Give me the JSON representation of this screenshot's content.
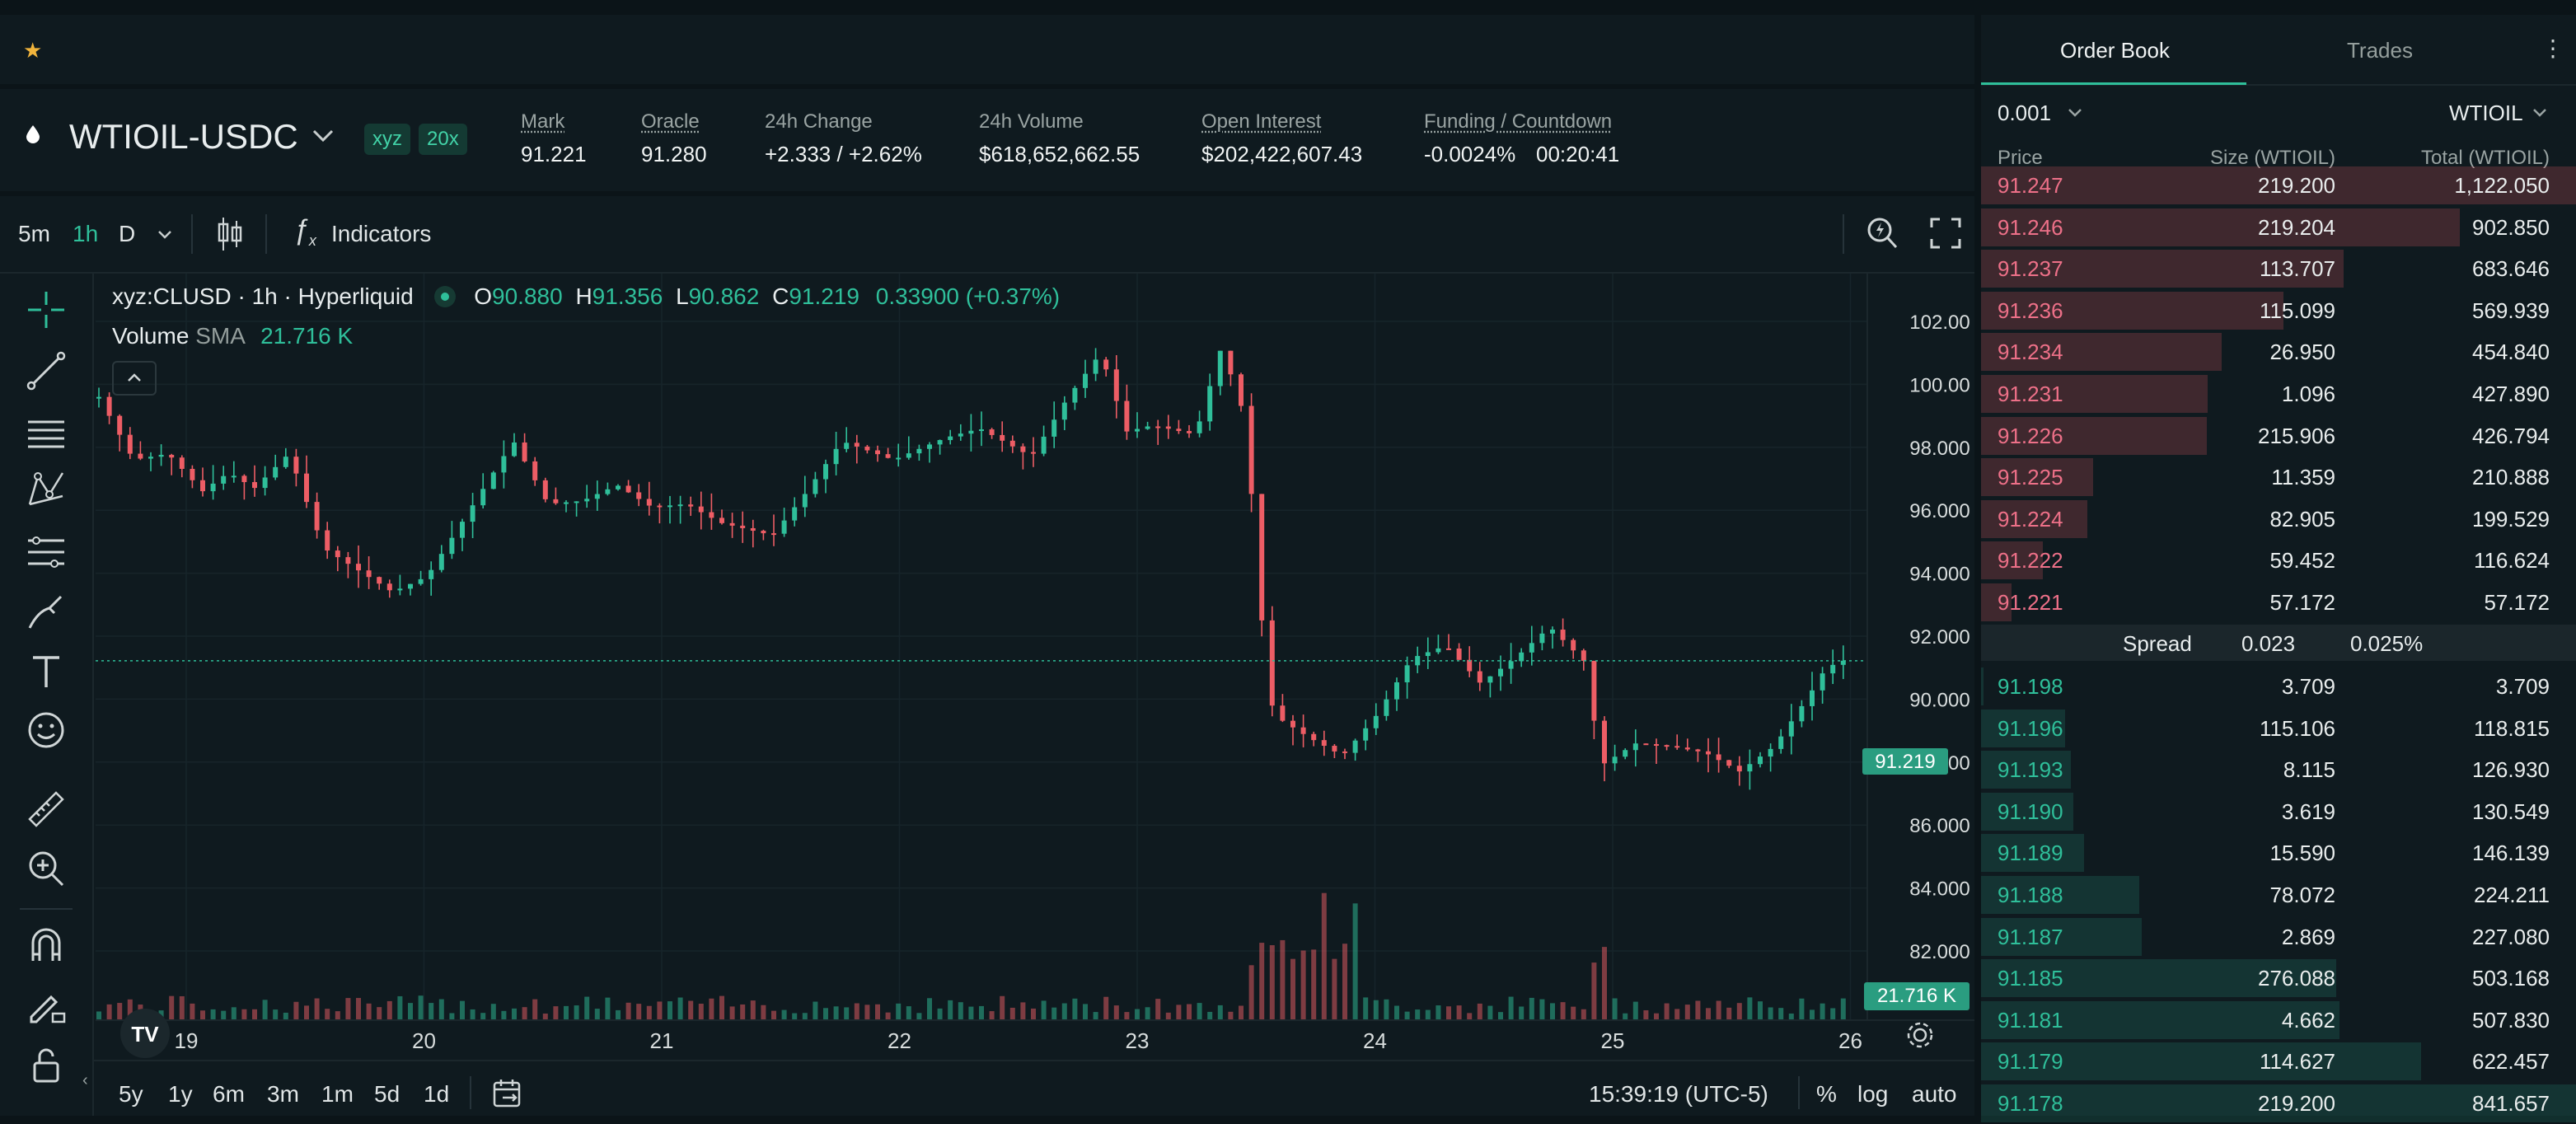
{
  "topbar": {
    "favorite_icon": "star-icon"
  },
  "market": {
    "symbol": "WTIOIL-USDC",
    "tags": [
      "xyz",
      "20x"
    ],
    "stats": [
      {
        "label": "Mark",
        "value": "91.221",
        "underline": true
      },
      {
        "label": "Oracle",
        "value": "91.280",
        "underline": true
      },
      {
        "label": "24h Change",
        "value": "+2.333 / +2.62%",
        "color": "#2fbf9a"
      },
      {
        "label": "24h Volume",
        "value": "$618,652,662.55"
      },
      {
        "label": "Open Interest",
        "value": "$202,422,607.43",
        "underline": true
      },
      {
        "label": "Funding / Countdown",
        "value": "-0.0024%",
        "value2": "00:20:41",
        "underline": true
      }
    ]
  },
  "chart_toolbar": {
    "intervals": [
      "5m",
      "1h",
      "D"
    ],
    "active_interval": "1h",
    "indicators_label": "Indicators"
  },
  "legend": {
    "title": "xyz:CLUSD · 1h · Hyperliquid",
    "o_label": "O",
    "o": "90.880",
    "h_label": "H",
    "h": "91.356",
    "l_label": "L",
    "l": "90.862",
    "c_label": "C",
    "c": "91.219",
    "change": "0.33900 (+0.37%)",
    "volume_label": "Volume",
    "sma_label": "SMA",
    "volume_value": "21.716 K"
  },
  "chart_data": {
    "type": "candlestick",
    "y_ticks": [
      "102.00",
      "100.00",
      "98.000",
      "96.000",
      "94.000",
      "92.000",
      "90.000",
      "88.000",
      "86.000",
      "84.000",
      "82.000"
    ],
    "x_ticks": [
      "19",
      "20",
      "21",
      "22",
      "23",
      "24",
      "25",
      "26"
    ],
    "ylim": [
      81,
      103
    ],
    "last_price": "91.219",
    "last_volume": "21.716 K",
    "colors": {
      "up": "#2fbf9a",
      "down": "#ed5d65"
    }
  },
  "bottombar": {
    "ranges": [
      "5y",
      "1y",
      "6m",
      "3m",
      "1m",
      "5d",
      "1d"
    ],
    "clock": "15:39:19 (UTC-5)",
    "percent": "%",
    "log": "log",
    "auto": "auto"
  },
  "orderbook": {
    "tabs": [
      "Order Book",
      "Trades"
    ],
    "tick": "0.001",
    "unit": "WTIOIL",
    "headers": [
      "Price",
      "Size (WTIOIL)",
      "Total (WTIOIL)"
    ],
    "asks": [
      {
        "price": "91.247",
        "size": "219.200",
        "total": "1,122.050",
        "depth": 1.0
      },
      {
        "price": "91.246",
        "size": "219.204",
        "total": "902.850",
        "depth": 0.805
      },
      {
        "price": "91.237",
        "size": "113.707",
        "total": "683.646",
        "depth": 0.609
      },
      {
        "price": "91.236",
        "size": "115.099",
        "total": "569.939",
        "depth": 0.508
      },
      {
        "price": "91.234",
        "size": "26.950",
        "total": "454.840",
        "depth": 0.405
      },
      {
        "price": "91.231",
        "size": "1.096",
        "total": "427.890",
        "depth": 0.381
      },
      {
        "price": "91.226",
        "size": "215.906",
        "total": "426.794",
        "depth": 0.38
      },
      {
        "price": "91.225",
        "size": "11.359",
        "total": "210.888",
        "depth": 0.188
      },
      {
        "price": "91.224",
        "size": "82.905",
        "total": "199.529",
        "depth": 0.178
      },
      {
        "price": "91.222",
        "size": "59.452",
        "total": "116.624",
        "depth": 0.104
      },
      {
        "price": "91.221",
        "size": "57.172",
        "total": "57.172",
        "depth": 0.051
      }
    ],
    "spread_label": "Spread",
    "spread_value": "0.023",
    "spread_pct": "0.025%",
    "bids": [
      {
        "price": "91.198",
        "size": "3.709",
        "total": "3.709",
        "depth": 0.004
      },
      {
        "price": "91.196",
        "size": "115.106",
        "total": "118.815",
        "depth": 0.141
      },
      {
        "price": "91.193",
        "size": "8.115",
        "total": "126.930",
        "depth": 0.151
      },
      {
        "price": "91.190",
        "size": "3.619",
        "total": "130.549",
        "depth": 0.155
      },
      {
        "price": "91.189",
        "size": "15.590",
        "total": "146.139",
        "depth": 0.173
      },
      {
        "price": "91.188",
        "size": "78.072",
        "total": "224.211",
        "depth": 0.266
      },
      {
        "price": "91.187",
        "size": "2.869",
        "total": "227.080",
        "depth": 0.27
      },
      {
        "price": "91.185",
        "size": "276.088",
        "total": "503.168",
        "depth": 0.597
      },
      {
        "price": "91.181",
        "size": "4.662",
        "total": "507.830",
        "depth": 0.603
      },
      {
        "price": "91.179",
        "size": "114.627",
        "total": "622.457",
        "depth": 0.739
      },
      {
        "price": "91.178",
        "size": "219.200",
        "total": "841.657",
        "depth": 1.0
      }
    ]
  }
}
